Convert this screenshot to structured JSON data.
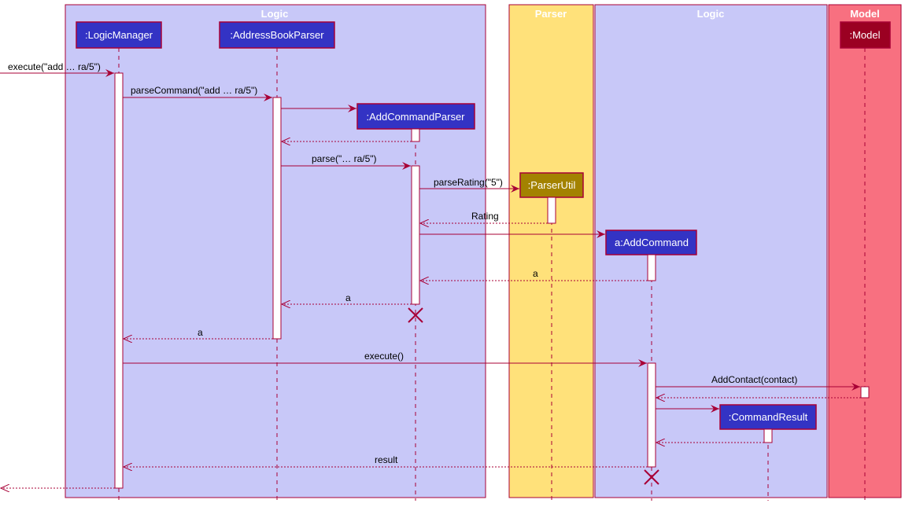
{
  "colors": {
    "logic_bg": "#C8C8F8",
    "parser_bg": "#FFE17A",
    "model_bg": "#F87080",
    "border": "#A80036",
    "participant_logic": "#3333C4",
    "participant_parser": "#A38200",
    "participant_model": "#9B0022"
  },
  "groups": [
    {
      "title": "Logic"
    },
    {
      "title": "Parser"
    },
    {
      "title": "Logic"
    },
    {
      "title": "Model"
    }
  ],
  "participants": [
    {
      "label": ":LogicManager"
    },
    {
      "label": ":AddressBookParser"
    },
    {
      "label": ":AddCommandParser"
    },
    {
      "label": ":ParserUtil"
    },
    {
      "label": "a:AddCommand"
    },
    {
      "label": ":Model"
    },
    {
      "label": ":CommandResult"
    }
  ],
  "messages": [
    {
      "label": "execute(\"add … ra/5\")"
    },
    {
      "label": "parseCommand(\"add … ra/5\")"
    },
    {
      "label": "parse(\"… ra/5\")"
    },
    {
      "label": "parseRating(\"5\")"
    },
    {
      "label": "Rating"
    },
    {
      "label": "a"
    },
    {
      "label": "a"
    },
    {
      "label": "a"
    },
    {
      "label": "execute()"
    },
    {
      "label": "AddContact(contact)"
    },
    {
      "label": "result"
    }
  ]
}
